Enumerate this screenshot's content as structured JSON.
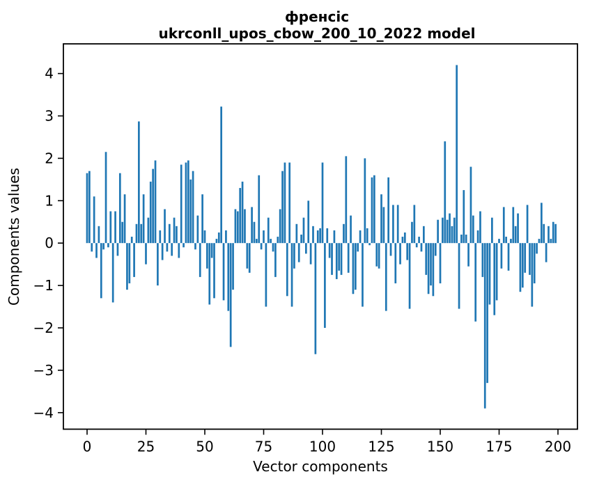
{
  "chart_data": {
    "type": "bar",
    "title": {
      "line1": "френсіс",
      "line2": "ukrconll_upos_cbow_200_10_2022 model"
    },
    "xlabel": "Vector components",
    "ylabel": "Components values",
    "bar_color": "#1f77b4",
    "axis_color": "#000000",
    "grid": "off",
    "legend": "none",
    "xlim": [
      -10.06,
      208.28
    ],
    "ylim": [
      -4.39,
      4.7
    ],
    "xticks": [
      0,
      25,
      50,
      75,
      100,
      125,
      150,
      175,
      200
    ],
    "yticks": [
      -4,
      -3,
      -2,
      -1,
      0,
      1,
      2,
      3,
      4
    ],
    "x_is_index": true,
    "n_components": 200,
    "bar_width_data_units": 0.8,
    "values": [
      1.65,
      1.7,
      -0.2,
      1.1,
      -0.35,
      0.4,
      -1.3,
      -0.15,
      2.15,
      -0.1,
      0.75,
      -1.4,
      0.75,
      -0.3,
      1.65,
      0.5,
      1.15,
      -1.1,
      -0.95,
      0.15,
      -0.8,
      0.45,
      2.87,
      0.45,
      1.15,
      -0.5,
      0.6,
      1.45,
      1.75,
      1.95,
      -1.0,
      0.3,
      -0.4,
      0.8,
      -0.2,
      0.45,
      -0.3,
      0.6,
      0.4,
      -0.35,
      1.85,
      -0.1,
      1.9,
      1.95,
      1.5,
      1.7,
      -0.15,
      0.65,
      -0.8,
      1.15,
      0.3,
      -0.6,
      -1.45,
      -0.35,
      -1.3,
      0.1,
      0.25,
      3.22,
      -1.35,
      0.3,
      -1.6,
      -2.45,
      -1.1,
      0.8,
      0.75,
      1.3,
      1.45,
      0.8,
      -0.6,
      -0.7,
      0.85,
      0.5,
      0.1,
      1.6,
      -0.15,
      0.3,
      -1.5,
      0.6,
      0.1,
      -0.2,
      -0.8,
      0.15,
      0.8,
      1.7,
      1.9,
      -1.25,
      1.9,
      -1.5,
      -0.6,
      0.45,
      -0.45,
      0.2,
      0.6,
      -0.25,
      1.0,
      -0.5,
      0.4,
      -2.62,
      0.3,
      0.35,
      1.9,
      -2.0,
      0.35,
      -0.35,
      -0.75,
      0.3,
      -0.85,
      -0.65,
      -0.75,
      0.45,
      2.05,
      -0.7,
      0.65,
      -1.2,
      -1.1,
      -0.2,
      0.3,
      -1.5,
      2.0,
      0.35,
      -0.05,
      1.55,
      1.6,
      -0.55,
      -0.6,
      1.15,
      0.85,
      -1.6,
      1.55,
      -0.3,
      0.9,
      -0.95,
      0.9,
      -0.5,
      0.15,
      0.25,
      -0.4,
      -1.55,
      0.5,
      0.9,
      -0.1,
      0.15,
      -0.2,
      0.4,
      -0.75,
      -1.2,
      -1.0,
      -1.25,
      -0.3,
      0.55,
      -0.95,
      0.6,
      2.4,
      0.55,
      0.7,
      0.4,
      0.6,
      4.2,
      -1.55,
      0.2,
      1.25,
      0.2,
      -0.55,
      1.8,
      0.65,
      -1.85,
      0.3,
      0.75,
      -0.8,
      -3.9,
      -3.3,
      -1.45,
      0.6,
      -1.7,
      -1.35,
      0.1,
      -0.6,
      0.85,
      0.15,
      -0.65,
      0.1,
      0.85,
      0.4,
      0.7,
      -1.15,
      -1.05,
      -0.7,
      0.9,
      -0.75,
      -1.5,
      -0.95,
      -0.25,
      0.1,
      0.95,
      0.45,
      -0.45,
      0.4,
      0.1,
      0.5,
      0.45
    ]
  }
}
